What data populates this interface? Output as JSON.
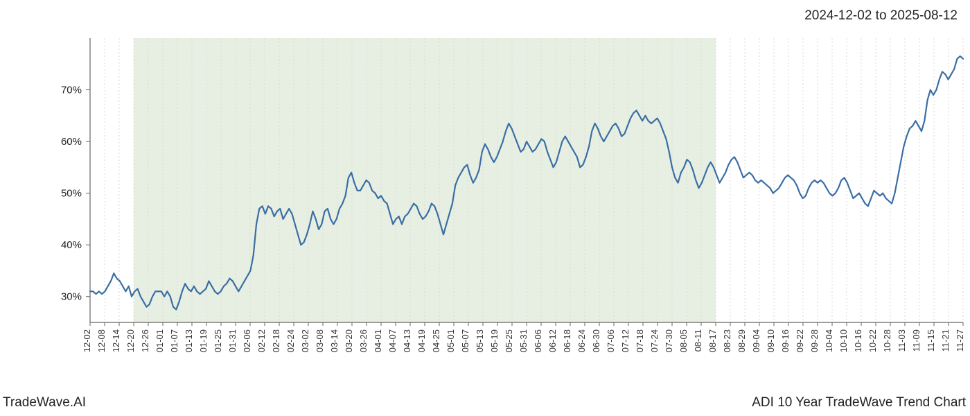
{
  "header": {
    "date_range": "2024-12-02 to 2025-08-12"
  },
  "footer": {
    "left": "TradeWave.AI",
    "right": "ADI 10 Year TradeWave Trend Chart"
  },
  "chart": {
    "type": "line",
    "background_color": "#ffffff",
    "highlight_band": {
      "fill": "#dfe9d8",
      "opacity": 0.75,
      "x_start_index": 3,
      "x_end_index": 43
    },
    "line": {
      "color": "#3a6ea5",
      "width": 2.2
    },
    "axis": {
      "spine_color": "#666666",
      "grid_color": "#d9d9d9",
      "grid_dash": "2,3"
    },
    "y": {
      "min": 25,
      "max": 80,
      "ticks": [
        30,
        40,
        50,
        60,
        70
      ],
      "tick_labels": [
        "30%",
        "40%",
        "50%",
        "60%",
        "70%"
      ]
    },
    "x_labels": [
      "12-02",
      "12-08",
      "12-14",
      "12-20",
      "12-26",
      "01-01",
      "01-07",
      "01-13",
      "01-19",
      "01-25",
      "01-31",
      "02-06",
      "02-12",
      "02-18",
      "02-24",
      "03-02",
      "03-08",
      "03-14",
      "03-20",
      "03-26",
      "04-01",
      "04-07",
      "04-13",
      "04-19",
      "04-25",
      "05-01",
      "05-07",
      "05-13",
      "05-19",
      "05-25",
      "05-31",
      "06-06",
      "06-12",
      "06-18",
      "06-24",
      "06-30",
      "07-06",
      "07-12",
      "07-18",
      "07-24",
      "07-30",
      "08-05",
      "08-11",
      "08-17",
      "08-23",
      "08-29",
      "09-04",
      "09-10",
      "09-16",
      "09-22",
      "09-28",
      "10-04",
      "10-10",
      "10-16",
      "10-22",
      "10-28",
      "11-03",
      "11-09",
      "11-15",
      "11-21",
      "11-27"
    ],
    "series": [
      31,
      31,
      30.5,
      31,
      30.5,
      31,
      32,
      33,
      34.5,
      33.5,
      33,
      32,
      31,
      32,
      30,
      31,
      31.5,
      30,
      29,
      28,
      28.5,
      30,
      31,
      31,
      31,
      30,
      31,
      30,
      28,
      27.5,
      29,
      31,
      32.5,
      31.5,
      31,
      32,
      31,
      30.5,
      31,
      31.5,
      33,
      32,
      31,
      30.5,
      31,
      32,
      32.5,
      33.5,
      33,
      32,
      31,
      32,
      33,
      34,
      35,
      38,
      44,
      47,
      47.5,
      46,
      47.5,
      47,
      45.5,
      46.5,
      47,
      45,
      46,
      47,
      46,
      44,
      42,
      40,
      40.5,
      42,
      44,
      46.5,
      45,
      43,
      44,
      46.5,
      47,
      45,
      44,
      45,
      47,
      48,
      49.5,
      53,
      54,
      52,
      50.5,
      50.5,
      51.5,
      52.5,
      52,
      50.5,
      50,
      49,
      49.5,
      48.5,
      48,
      46,
      44,
      45,
      45.5,
      44,
      45.5,
      46,
      47,
      48,
      47.5,
      46,
      45,
      45.5,
      46.5,
      48,
      47.5,
      46,
      44,
      42,
      44,
      46,
      48,
      51.5,
      53,
      54,
      55,
      55.5,
      53.5,
      52,
      53,
      54.5,
      58,
      59.5,
      58.5,
      57,
      56,
      57,
      58.5,
      60,
      62,
      63.5,
      62.5,
      61,
      59.5,
      58,
      58.5,
      60,
      59,
      58,
      58.5,
      59.5,
      60.5,
      60,
      58,
      56.5,
      55,
      56,
      58,
      60,
      61,
      60,
      59,
      58,
      57,
      55,
      55.5,
      57,
      59,
      62,
      63.5,
      62.5,
      61,
      60,
      61,
      62,
      63,
      63.5,
      62.5,
      61,
      61.5,
      63,
      64.5,
      65.5,
      66,
      65,
      64,
      65,
      64,
      63.5,
      64,
      64.5,
      63.5,
      62,
      60.5,
      58,
      55,
      53,
      52,
      54,
      55,
      56.5,
      56,
      54.5,
      52.5,
      51,
      52,
      53.5,
      55,
      56,
      55,
      53.5,
      52,
      53,
      54,
      55.5,
      56.5,
      57,
      56,
      54.5,
      53,
      53.5,
      54,
      53.5,
      52.5,
      52,
      52.5,
      52,
      51.5,
      51,
      50,
      50.5,
      51,
      52,
      53,
      53.5,
      53,
      52.5,
      51.5,
      50,
      49,
      49.5,
      51,
      52,
      52.5,
      52,
      52.5,
      52,
      51,
      50,
      49.5,
      50,
      51,
      52.5,
      53,
      52,
      50.5,
      49,
      49.5,
      50,
      49,
      48,
      47.5,
      49,
      50.5,
      50,
      49.5,
      50,
      49,
      48.5,
      48,
      50,
      53,
      56,
      59,
      61,
      62.5,
      63,
      64,
      63,
      62,
      64,
      68,
      70,
      69,
      70,
      72,
      73.5,
      73,
      72,
      73,
      74,
      76,
      76.5,
      76
    ]
  }
}
